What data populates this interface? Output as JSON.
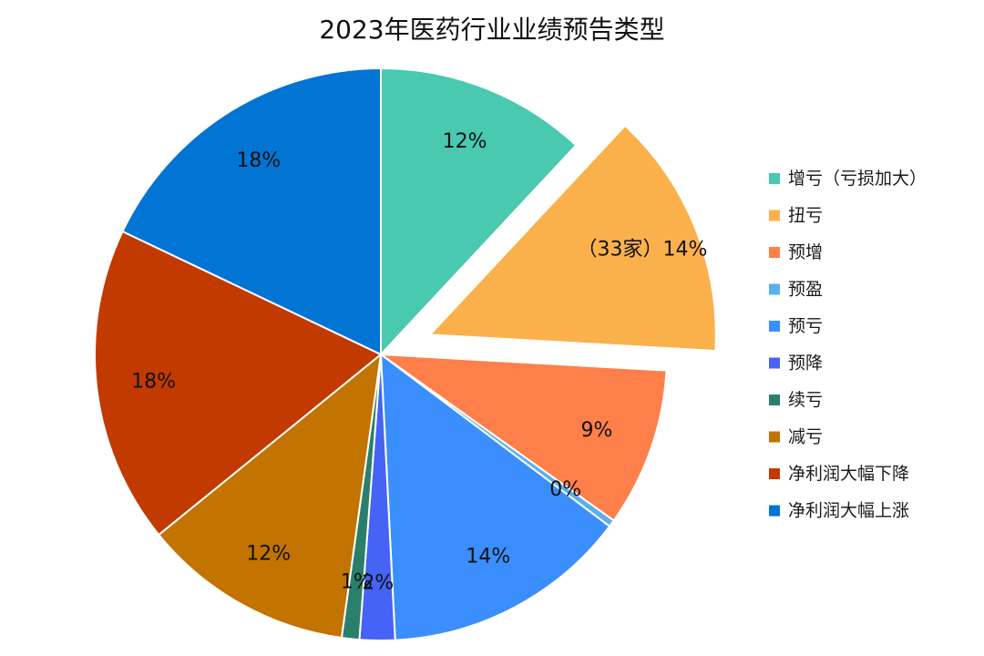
{
  "chart_data": {
    "type": "pie",
    "title": "2023年医药行业业绩预告类型",
    "legend_position": "right",
    "slices": [
      {
        "label": "增亏（亏损加大）",
        "value": 12,
        "data_label": "12%",
        "color": "#48C9B0",
        "exploded": false
      },
      {
        "label": "扭亏",
        "value": 14,
        "data_label": "（33家）14%",
        "color": "#FBB14B",
        "exploded": true
      },
      {
        "label": "预增",
        "value": 9,
        "data_label": "9%",
        "color": "#FF7F4A",
        "exploded": false
      },
      {
        "label": "预盈",
        "value": 0.4,
        "data_label": "0%",
        "color": "#5AAFEF",
        "exploded": false
      },
      {
        "label": "预亏",
        "value": 14,
        "data_label": "14%",
        "color": "#3A8EFD",
        "exploded": false
      },
      {
        "label": "预降",
        "value": 2,
        "data_label": "2%",
        "color": "#4563F4",
        "exploded": false
      },
      {
        "label": "续亏",
        "value": 1,
        "data_label": "1%",
        "color": "#2A7F6B",
        "exploded": false
      },
      {
        "label": "减亏",
        "value": 12,
        "data_label": "12%",
        "color": "#C27300",
        "exploded": false
      },
      {
        "label": "净利润大幅下降",
        "value": 18,
        "data_label": "18%",
        "color": "#C23A00",
        "exploded": false
      },
      {
        "label": "净利润大幅上涨",
        "value": 18,
        "data_label": "18%",
        "color": "#0274D4",
        "exploded": false
      }
    ]
  }
}
